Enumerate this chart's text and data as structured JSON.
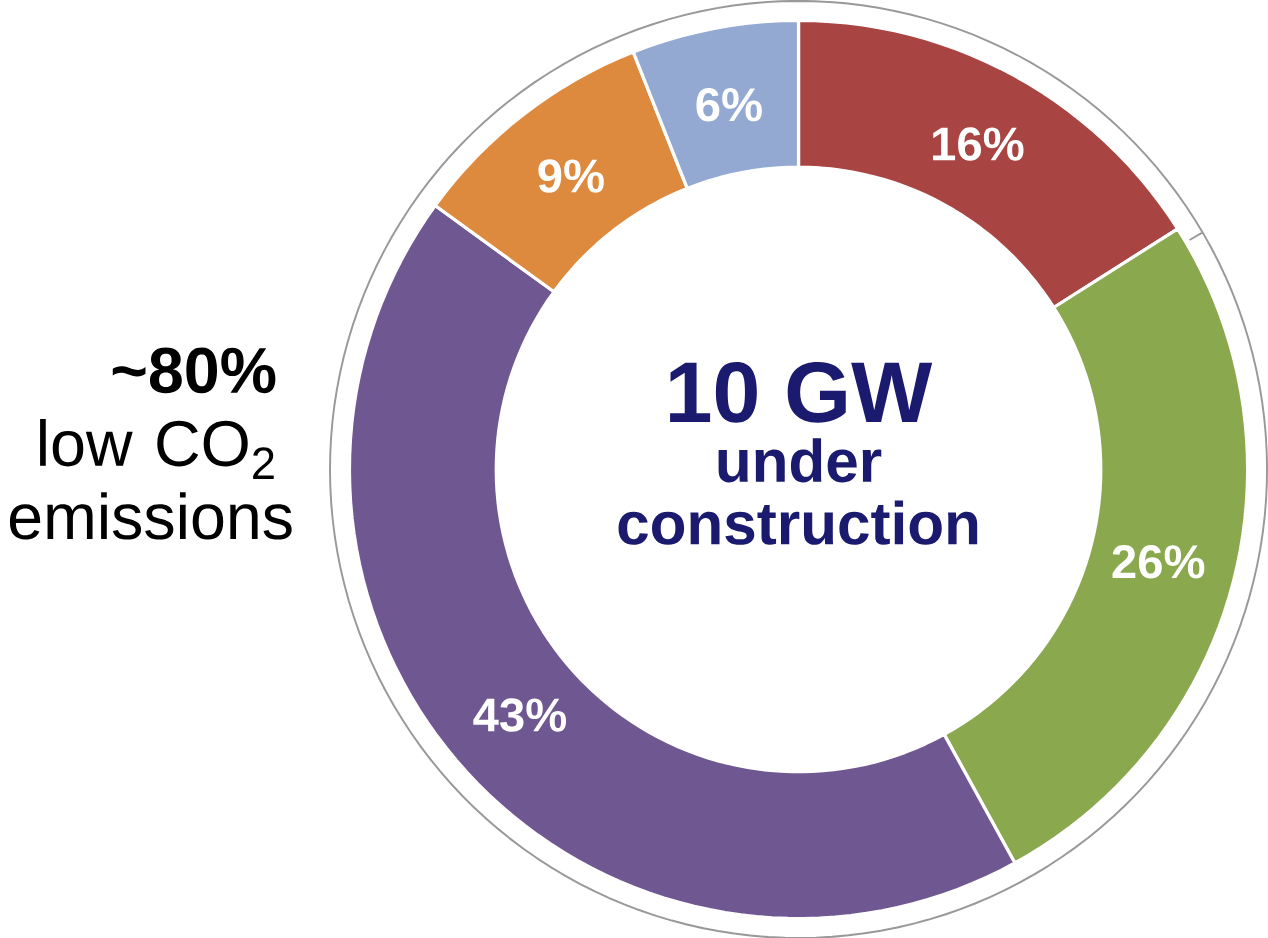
{
  "chart_data": {
    "type": "donut",
    "title": "10 GW",
    "subtitle": "under construction",
    "categories": [
      null,
      null,
      null,
      null,
      null
    ],
    "values": [
      16,
      26,
      43,
      9,
      6
    ],
    "colors": [
      "#a84543",
      "#8aa84e",
      "#6f5891",
      "#de8a3e",
      "#93a9d2"
    ],
    "value_labels": [
      "16%",
      "26%",
      "43%",
      "9%",
      "6%"
    ],
    "annotations": [
      "**~80%** low CO$_{2}$ emissions"
    ]
  }
}
